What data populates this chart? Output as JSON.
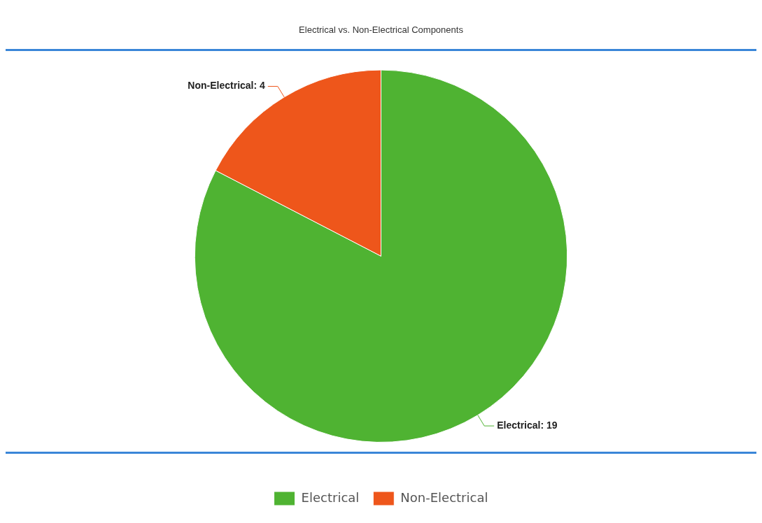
{
  "chart_data": {
    "type": "pie",
    "title": "Electrical vs. Non-Electrical Components",
    "categories": [
      "Electrical",
      "Non-Electrical"
    ],
    "values": [
      19,
      4
    ],
    "colors": [
      "#4fb332",
      "#ee561b"
    ],
    "value_labels": [
      "Electrical: 19",
      "Non-Electrical: 4"
    ],
    "legend": "bottom"
  }
}
